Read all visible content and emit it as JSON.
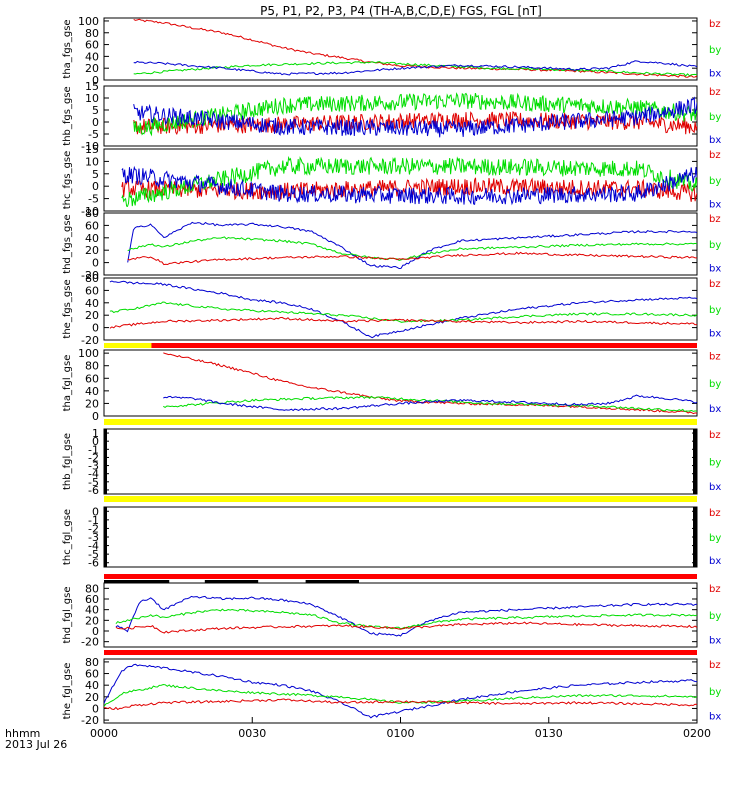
{
  "title": "P5, P1, P2, P3, P4 (TH-A,B,C,D,E) FGS, FGL [nT]",
  "footer": {
    "label1": "hhmm",
    "label2": "2013 Jul 26"
  },
  "colors": {
    "bz": "#e00000",
    "by": "#00dd00",
    "bx": "#0000d0",
    "yellow_bar": "#ffff00",
    "red_bar": "#ff0000",
    "black": "#000000"
  },
  "legend": [
    "bz",
    "by",
    "bx"
  ],
  "chart_data": {
    "type": "line",
    "x_axis": {
      "range": [
        "0000",
        "0200"
      ],
      "ticks": [
        "0000",
        "0030",
        "0100",
        "0130",
        "0200"
      ]
    },
    "panels": [
      {
        "ylabel": "tha_fgs_gse",
        "ylim": [
          0,
          105
        ],
        "yticks": [
          "0",
          "20",
          "40",
          "60",
          "80",
          "100"
        ],
        "start": 0.05,
        "mode": "smooth",
        "series": [
          {
            "name": "bz",
            "x": [
              0.05,
              0.1,
              0.15,
              0.2,
              0.25,
              0.3,
              0.35,
              0.4,
              0.45,
              0.5,
              0.6,
              0.7,
              0.8,
              0.9,
              1.0
            ],
            "y": [
              102,
              97,
              88,
              80,
              68,
              55,
              45,
              38,
              30,
              24,
              20,
              18,
              15,
              10,
              5
            ]
          },
          {
            "name": "by",
            "x": [
              0.05,
              0.15,
              0.25,
              0.35,
              0.45,
              0.55,
              0.65,
              0.75,
              0.85,
              0.9,
              0.95,
              1.0
            ],
            "y": [
              10,
              18,
              25,
              28,
              30,
              25,
              20,
              18,
              15,
              12,
              10,
              8
            ]
          },
          {
            "name": "bx",
            "x": [
              0.05,
              0.1,
              0.2,
              0.3,
              0.4,
              0.5,
              0.6,
              0.7,
              0.8,
              0.85,
              0.9,
              0.95,
              1.0
            ],
            "y": [
              30,
              28,
              20,
              10,
              12,
              20,
              25,
              22,
              18,
              20,
              32,
              28,
              22
            ]
          }
        ]
      },
      {
        "ylabel": "thb_fgs_gse",
        "ylim": [
          -10,
          15
        ],
        "yticks": [
          "-10",
          "-5",
          "0",
          "5",
          "10",
          "15"
        ],
        "start": 0.05,
        "mode": "noisy",
        "series": [
          {
            "name": "bz",
            "x": [
              0.05,
              0.3,
              0.6,
              0.9,
              1.0
            ],
            "y": [
              -2,
              -1,
              1,
              0,
              -2
            ]
          },
          {
            "name": "by",
            "x": [
              0.05,
              0.3,
              0.6,
              0.9,
              1.0
            ],
            "y": [
              -3,
              7,
              9,
              6,
              3
            ]
          },
          {
            "name": "bx",
            "x": [
              0.05,
              0.3,
              0.6,
              0.9,
              1.0
            ],
            "y": [
              4,
              -2,
              -3,
              2,
              7
            ]
          }
        ]
      },
      {
        "ylabel": "thc_fgs_gse",
        "ylim": [
          -10,
          15
        ],
        "yticks": [
          "-10",
          "-5",
          "0",
          "5",
          "10",
          "15"
        ],
        "start": 0.03,
        "mode": "noisy",
        "series": [
          {
            "name": "bz",
            "x": [
              0.03,
              0.3,
              0.6,
              0.9,
              1.0
            ],
            "y": [
              -1,
              -2,
              0,
              -1,
              -3
            ]
          },
          {
            "name": "by",
            "x": [
              0.03,
              0.3,
              0.6,
              0.9,
              1.0
            ],
            "y": [
              -6,
              8,
              8,
              7,
              0
            ]
          },
          {
            "name": "bx",
            "x": [
              0.03,
              0.3,
              0.6,
              0.9,
              1.0
            ],
            "y": [
              5,
              -3,
              -4,
              -3,
              5
            ]
          }
        ]
      },
      {
        "ylabel": "thd_fgs_gse",
        "ylim": [
          -20,
          80
        ],
        "yticks": [
          "-20",
          "0",
          "20",
          "40",
          "60",
          "80"
        ],
        "start": 0.04,
        "mode": "smooth",
        "series": [
          {
            "name": "bx",
            "x": [
              0.04,
              0.05,
              0.08,
              0.1,
              0.15,
              0.2,
              0.25,
              0.3,
              0.35,
              0.4,
              0.45,
              0.5,
              0.55,
              0.6,
              0.7,
              0.8,
              0.9,
              1.0
            ],
            "y": [
              0,
              55,
              62,
              40,
              65,
              60,
              62,
              58,
              50,
              25,
              -5,
              -8,
              20,
              35,
              40,
              45,
              50,
              50
            ]
          },
          {
            "name": "by",
            "x": [
              0.04,
              0.08,
              0.1,
              0.15,
              0.2,
              0.3,
              0.35,
              0.4,
              0.45,
              0.5,
              0.55,
              0.6,
              0.7,
              0.8,
              0.9,
              1.0
            ],
            "y": [
              20,
              30,
              25,
              35,
              40,
              35,
              30,
              15,
              8,
              5,
              15,
              22,
              25,
              28,
              30,
              30
            ]
          },
          {
            "name": "bz",
            "x": [
              0.04,
              0.08,
              0.1,
              0.2,
              0.3,
              0.4,
              0.5,
              0.6,
              0.7,
              0.8,
              0.9,
              1.0
            ],
            "y": [
              5,
              10,
              -2,
              5,
              8,
              10,
              5,
              12,
              15,
              12,
              10,
              8
            ]
          }
        ]
      },
      {
        "ylabel": "the_fgs_gse",
        "ylim": [
          -20,
          80
        ],
        "yticks": [
          "-20",
          "0",
          "20",
          "40",
          "60",
          "80"
        ],
        "start": 0.01,
        "mode": "smooth",
        "series": [
          {
            "name": "bx",
            "x": [
              0.01,
              0.05,
              0.1,
              0.15,
              0.2,
              0.25,
              0.3,
              0.35,
              0.4,
              0.45,
              0.5,
              0.55,
              0.6,
              0.7,
              0.8,
              0.9,
              1.0
            ],
            "y": [
              75,
              72,
              70,
              62,
              55,
              45,
              40,
              30,
              10,
              -15,
              -5,
              5,
              15,
              30,
              40,
              45,
              48
            ]
          },
          {
            "name": "by",
            "x": [
              0.01,
              0.05,
              0.1,
              0.15,
              0.2,
              0.3,
              0.4,
              0.5,
              0.6,
              0.7,
              0.8,
              0.9,
              1.0
            ],
            "y": [
              25,
              30,
              40,
              35,
              30,
              25,
              20,
              10,
              12,
              18,
              22,
              22,
              20
            ]
          },
          {
            "name": "bz",
            "x": [
              0.01,
              0.05,
              0.1,
              0.2,
              0.3,
              0.4,
              0.5,
              0.6,
              0.7,
              0.8,
              0.9,
              1.0
            ],
            "y": [
              0,
              5,
              10,
              12,
              15,
              10,
              12,
              10,
              8,
              10,
              8,
              6
            ]
          }
        ]
      },
      {
        "ylabel": "tha_fgl_gse",
        "ylim": [
          0,
          105
        ],
        "yticks": [
          "0",
          "20",
          "40",
          "60",
          "80",
          "100"
        ],
        "start": 0.1,
        "mode": "smooth",
        "series": [
          {
            "name": "bz",
            "x": [
              0.1,
              0.15,
              0.2,
              0.25,
              0.3,
              0.35,
              0.4,
              0.45,
              0.5,
              0.6,
              0.7,
              0.8,
              0.9,
              1.0
            ],
            "y": [
              100,
              90,
              80,
              68,
              55,
              45,
              38,
              30,
              24,
              20,
              18,
              15,
              10,
              5
            ]
          },
          {
            "name": "by",
            "x": [
              0.1,
              0.15,
              0.25,
              0.35,
              0.45,
              0.55,
              0.65,
              0.75,
              0.85,
              0.9,
              0.95,
              1.0
            ],
            "y": [
              15,
              18,
              25,
              28,
              30,
              25,
              20,
              18,
              15,
              12,
              10,
              8
            ]
          },
          {
            "name": "bx",
            "x": [
              0.1,
              0.15,
              0.2,
              0.3,
              0.4,
              0.5,
              0.6,
              0.7,
              0.8,
              0.85,
              0.9,
              0.95,
              1.0
            ],
            "y": [
              30,
              28,
              20,
              10,
              12,
              20,
              25,
              22,
              18,
              20,
              32,
              28,
              22
            ]
          }
        ]
      },
      {
        "ylabel": "thb_fgl_gse",
        "ylim": [
          -6.5,
          1.5
        ],
        "yticks": [
          "-6",
          "-5",
          "-4",
          "-3",
          "-2",
          "-1",
          "0",
          "1"
        ],
        "start": null,
        "mode": "empty",
        "series": []
      },
      {
        "ylabel": "thc_fgl_gse",
        "ylim": [
          -6.5,
          0.5
        ],
        "yticks": [
          "-6",
          "-5",
          "-4",
          "-3",
          "-2",
          "-1",
          "0"
        ],
        "start": null,
        "mode": "empty",
        "series": []
      },
      {
        "ylabel": "thd_fgl_gse",
        "ylim": [
          -30,
          90
        ],
        "yticks": [
          "-20",
          "0",
          "20",
          "40",
          "60",
          "80"
        ],
        "start": 0.02,
        "mode": "smooth",
        "series": [
          {
            "name": "bx",
            "x": [
              0.02,
              0.04,
              0.06,
              0.08,
              0.1,
              0.15,
              0.2,
              0.25,
              0.3,
              0.35,
              0.4,
              0.45,
              0.5,
              0.55,
              0.6,
              0.7,
              0.8,
              0.9,
              1.0
            ],
            "y": [
              10,
              0,
              55,
              62,
              40,
              65,
              60,
              62,
              58,
              50,
              25,
              -5,
              -8,
              20,
              35,
              40,
              45,
              50,
              50
            ]
          },
          {
            "name": "by",
            "x": [
              0.02,
              0.04,
              0.08,
              0.1,
              0.15,
              0.2,
              0.3,
              0.35,
              0.4,
              0.45,
              0.5,
              0.55,
              0.6,
              0.7,
              0.8,
              0.9,
              1.0
            ],
            "y": [
              15,
              20,
              30,
              25,
              35,
              40,
              35,
              30,
              15,
              8,
              5,
              15,
              22,
              25,
              28,
              30,
              30
            ]
          },
          {
            "name": "bz",
            "x": [
              0.02,
              0.04,
              0.08,
              0.1,
              0.2,
              0.3,
              0.4,
              0.5,
              0.6,
              0.7,
              0.8,
              0.9,
              1.0
            ],
            "y": [
              5,
              5,
              10,
              -2,
              5,
              8,
              10,
              5,
              12,
              15,
              12,
              10,
              8
            ]
          }
        ]
      },
      {
        "ylabel": "the_fgl_gse",
        "ylim": [
          -25,
          85
        ],
        "yticks": [
          "-20",
          "0",
          "20",
          "40",
          "60",
          "80"
        ],
        "start": 0.0,
        "mode": "smooth",
        "series": [
          {
            "name": "bx",
            "x": [
              0.0,
              0.03,
              0.05,
              0.1,
              0.15,
              0.2,
              0.25,
              0.3,
              0.35,
              0.4,
              0.45,
              0.5,
              0.55,
              0.6,
              0.7,
              0.8,
              0.9,
              1.0
            ],
            "y": [
              10,
              65,
              75,
              70,
              62,
              55,
              45,
              40,
              30,
              10,
              -15,
              -5,
              5,
              15,
              30,
              40,
              45,
              48
            ]
          },
          {
            "name": "by",
            "x": [
              0.0,
              0.03,
              0.05,
              0.1,
              0.15,
              0.2,
              0.3,
              0.4,
              0.5,
              0.6,
              0.7,
              0.8,
              0.9,
              1.0
            ],
            "y": [
              5,
              25,
              30,
              40,
              35,
              30,
              25,
              20,
              10,
              12,
              18,
              22,
              22,
              20
            ]
          },
          {
            "name": "bz",
            "x": [
              0.0,
              0.03,
              0.05,
              0.1,
              0.2,
              0.3,
              0.4,
              0.5,
              0.6,
              0.7,
              0.8,
              0.9,
              1.0
            ],
            "y": [
              0,
              0,
              5,
              10,
              12,
              15,
              10,
              12,
              10,
              8,
              10,
              8,
              6
            ]
          }
        ]
      }
    ],
    "status_bars": [
      {
        "after_panel": 4,
        "color": "red",
        "yellow_until": 0.08
      },
      {
        "after_panel": 5,
        "color": "yellow"
      },
      {
        "after_panel": 6,
        "color": "yellow"
      },
      {
        "after_panel": 7,
        "color": "red",
        "black_segments": [
          [
            0.0,
            0.11
          ],
          [
            0.17,
            0.26
          ],
          [
            0.34,
            0.43
          ]
        ]
      },
      {
        "after_panel": 8,
        "color": "red"
      }
    ]
  }
}
